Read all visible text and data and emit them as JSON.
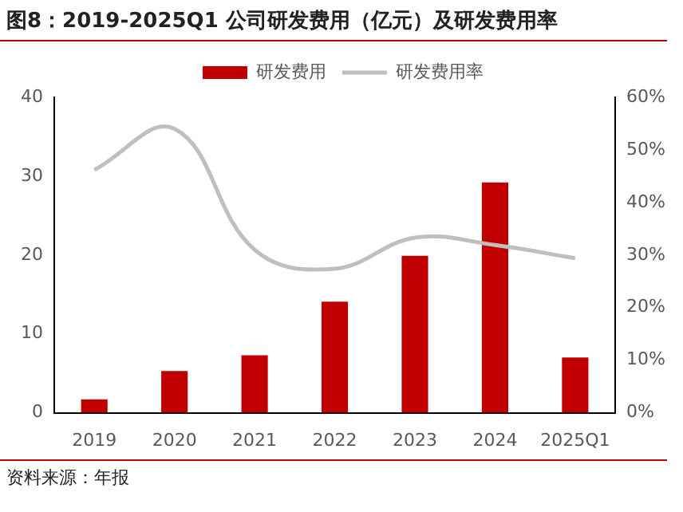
{
  "chart_data": {
    "type": "bar",
    "title": "图8：2019-2025Q1 公司研发费用（亿元）及研发费用率",
    "categories": [
      "2019",
      "2020",
      "2021",
      "2022",
      "2023",
      "2024",
      "2025Q1"
    ],
    "series": [
      {
        "name": "研发费用",
        "color": "#c00000",
        "values": [
          1.7,
          5.3,
          7.3,
          14.1,
          19.9,
          29.2,
          7.0
        ]
      },
      {
        "name": "研发费用率",
        "type": "line",
        "axis": "y2",
        "color": "#bfbfbf",
        "values": [
          46.2,
          54.0,
          31.0,
          27.4,
          33.3,
          31.9,
          29.4
        ]
      }
    ],
    "ylim": [
      0,
      40
    ],
    "yticks": [
      0,
      10,
      20,
      30,
      40
    ],
    "y2lim": [
      0,
      60
    ],
    "y2ticks": [
      {
        "value": 0,
        "label": "0%"
      },
      {
        "value": 10,
        "label": "10%"
      },
      {
        "value": 20,
        "label": "20%"
      },
      {
        "value": 30,
        "label": "30%"
      },
      {
        "value": 40,
        "label": "40%"
      },
      {
        "value": 50,
        "label": "50%"
      },
      {
        "value": 60,
        "label": "60%"
      }
    ],
    "grid": false,
    "legend": "top",
    "marker": "none",
    "annotations": [
      "资料来源：年报"
    ]
  }
}
